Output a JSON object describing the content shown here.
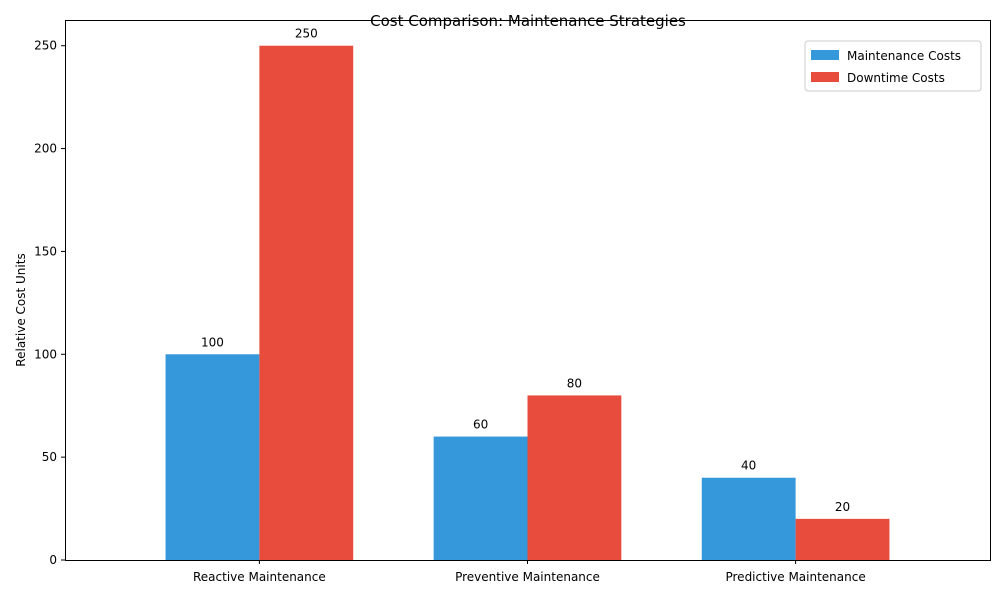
{
  "chart_data": {
    "type": "bar",
    "title": "Cost Comparison: Maintenance Strategies",
    "xlabel": "",
    "ylabel": "Relative Cost Units",
    "categories": [
      "Reactive Maintenance",
      "Preventive Maintenance",
      "Predictive Maintenance"
    ],
    "series": [
      {
        "name": "Maintenance Costs",
        "color": "#3498db",
        "values": [
          100,
          60,
          40
        ]
      },
      {
        "name": "Downtime Costs",
        "color": "#e74c3c",
        "values": [
          250,
          80,
          20
        ]
      }
    ],
    "ylim": [
      0,
      262.5
    ],
    "yticks": [
      0,
      50,
      100,
      150,
      200,
      250
    ],
    "grid": false,
    "legend_position": "top-right",
    "data_labels": true
  }
}
